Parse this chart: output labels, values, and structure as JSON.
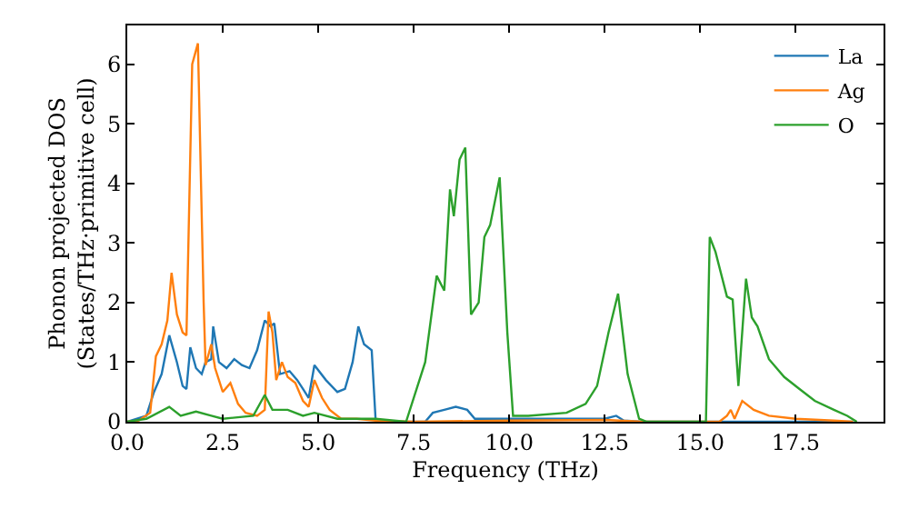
{
  "chart_data": {
    "type": "line",
    "xlabel": "Frequency (THz)",
    "ylabel": "Phonon projected DOS\n(States/THz·primitive cell)",
    "xlim": [
      0,
      19.8
    ],
    "ylim": [
      0,
      6.65
    ],
    "xticks": [
      {
        "value": 0,
        "label": "0.0"
      },
      {
        "value": 2.5,
        "label": "2.5"
      },
      {
        "value": 5,
        "label": "5.0"
      },
      {
        "value": 7.5,
        "label": "7.5"
      },
      {
        "value": 10,
        "label": "10.0"
      },
      {
        "value": 12.5,
        "label": "12.5"
      },
      {
        "value": 15,
        "label": "15.0"
      },
      {
        "value": 17.5,
        "label": "17.5"
      }
    ],
    "yticks": [
      0,
      1,
      2,
      3,
      4,
      5,
      6
    ],
    "legend": "top right",
    "marker": "none",
    "line_style": "solid",
    "series": [
      {
        "name": "La",
        "color": "#1f77b4",
        "x": [
          0,
          0.5,
          0.7,
          0.9,
          1.1,
          1.3,
          1.45,
          1.55,
          1.65,
          1.8,
          1.95,
          2.05,
          2.2,
          2.25,
          2.4,
          2.6,
          2.8,
          3.0,
          3.2,
          3.4,
          3.6,
          3.75,
          3.85,
          4.0,
          4.25,
          4.45,
          4.6,
          4.75,
          4.9,
          5.2,
          5.5,
          5.7,
          5.9,
          6.05,
          6.2,
          6.4,
          6.5,
          6.7,
          7.8,
          8.0,
          8.3,
          8.6,
          8.9,
          9.1,
          10,
          12.5,
          12.8,
          13.0,
          13.5,
          19
        ],
        "values": [
          0,
          0.1,
          0.5,
          0.8,
          1.45,
          1.0,
          0.6,
          0.55,
          1.25,
          0.9,
          0.8,
          1.0,
          1.05,
          1.6,
          1.0,
          0.9,
          1.05,
          0.95,
          0.9,
          1.2,
          1.7,
          1.6,
          1.65,
          0.8,
          0.85,
          0.7,
          0.55,
          0.4,
          0.95,
          0.7,
          0.5,
          0.55,
          1.0,
          1.6,
          1.3,
          1.2,
          0.05,
          0,
          0,
          0.15,
          0.2,
          0.25,
          0.2,
          0.05,
          0.05,
          0.05,
          0.1,
          0.02,
          0,
          0
        ]
      },
      {
        "name": "Ag",
        "color": "#ff7f0e",
        "x": [
          0,
          0.3,
          0.6,
          0.75,
          0.9,
          1.05,
          1.16,
          1.3,
          1.45,
          1.55,
          1.7,
          1.85,
          2.0,
          2.05,
          2.2,
          2.3,
          2.5,
          2.7,
          2.9,
          3.1,
          3.4,
          3.6,
          3.7,
          3.8,
          3.9,
          4.05,
          4.2,
          4.4,
          4.6,
          4.75,
          4.9,
          5.1,
          5.3,
          5.6,
          6.0,
          6.5,
          7.5,
          10,
          12.5,
          13.5,
          15.5,
          15.7,
          15.8,
          15.9,
          16.1,
          16.4,
          16.8,
          17.5,
          18.5,
          19
        ],
        "values": [
          0,
          0.02,
          0.15,
          1.1,
          1.3,
          1.7,
          2.5,
          1.8,
          1.5,
          1.45,
          6.0,
          6.35,
          2.0,
          0.95,
          1.3,
          0.9,
          0.5,
          0.65,
          0.3,
          0.15,
          0.1,
          0.2,
          1.85,
          1.5,
          0.7,
          1.0,
          0.75,
          0.65,
          0.35,
          0.25,
          0.7,
          0.4,
          0.2,
          0.05,
          0.05,
          0.02,
          0,
          0.02,
          0.03,
          0,
          0,
          0.1,
          0.2,
          0.05,
          0.35,
          0.2,
          0.1,
          0.05,
          0.02,
          0
        ]
      },
      {
        "name": "O",
        "color": "#2ca02c",
        "x": [
          0,
          0.5,
          1.1,
          1.4,
          1.8,
          2.2,
          2.5,
          3.3,
          3.6,
          3.8,
          4.2,
          4.6,
          4.9,
          5.5,
          6.5,
          7.3,
          7.8,
          8.1,
          8.3,
          8.45,
          8.55,
          8.7,
          8.85,
          9.0,
          9.2,
          9.35,
          9.5,
          9.75,
          9.95,
          10.1,
          10.5,
          11.5,
          12.0,
          12.3,
          12.6,
          12.85,
          13.1,
          13.4,
          13.6,
          15.15,
          15.25,
          15.4,
          15.7,
          15.85,
          16.0,
          16.2,
          16.35,
          16.5,
          16.8,
          17.2,
          17.6,
          18.0,
          18.5,
          18.85,
          19.1
        ],
        "values": [
          0,
          0.05,
          0.25,
          0.1,
          0.17,
          0.1,
          0.05,
          0.1,
          0.45,
          0.2,
          0.2,
          0.1,
          0.15,
          0.05,
          0.05,
          0,
          1.0,
          2.45,
          2.2,
          3.9,
          3.45,
          4.4,
          4.6,
          1.8,
          2.0,
          3.1,
          3.3,
          4.1,
          1.5,
          0.1,
          0.1,
          0.15,
          0.3,
          0.6,
          1.5,
          2.15,
          0.8,
          0.05,
          0,
          0,
          3.1,
          2.85,
          2.1,
          2.05,
          0.6,
          2.4,
          1.75,
          1.6,
          1.05,
          0.75,
          0.55,
          0.35,
          0.2,
          0.1,
          0
        ]
      }
    ]
  }
}
